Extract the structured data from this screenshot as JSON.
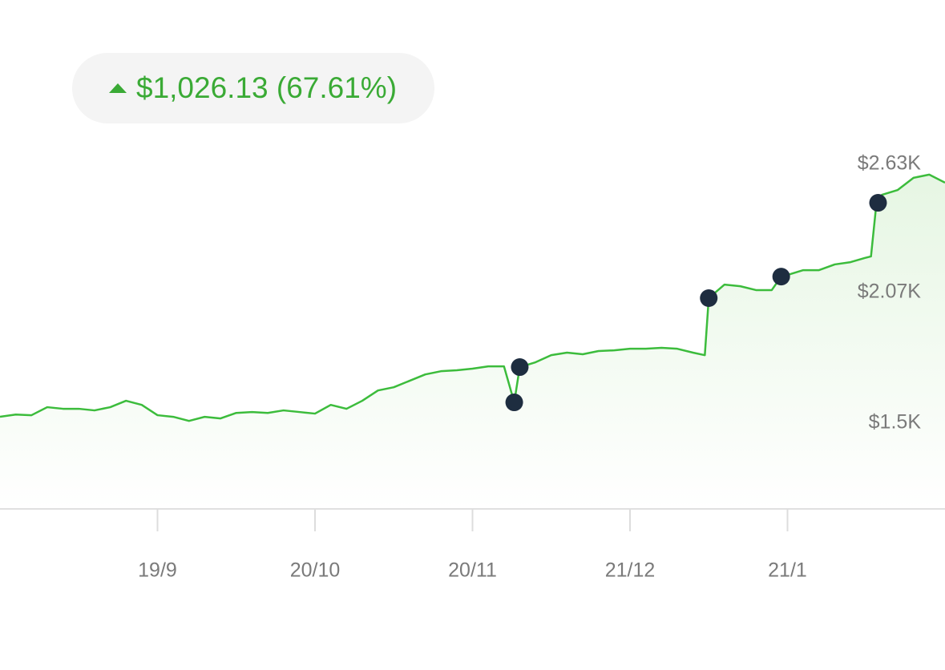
{
  "chart_data": {
    "type": "line",
    "annotation": "$1,026.13 (67.61%)",
    "x": [
      0,
      2,
      4,
      6,
      8,
      10,
      12,
      14,
      16,
      18,
      20,
      22,
      24,
      26,
      28,
      30,
      32,
      34,
      36,
      38,
      40,
      42,
      44,
      46,
      48,
      50,
      52,
      54,
      56,
      58,
      60,
      62,
      64,
      65.3,
      66,
      68,
      70,
      72,
      74,
      76,
      78,
      80,
      82,
      84,
      86,
      88,
      89.5,
      90,
      92,
      94,
      96,
      98,
      99.2,
      100,
      102,
      104,
      106,
      108,
      109.8,
      110.6,
      111.3,
      112,
      114,
      116,
      118,
      120
    ],
    "series": [
      {
        "color": "#3cbc3c",
        "values": [
          1528,
          1538,
          1535,
          1570,
          1563,
          1563,
          1556,
          1570,
          1598,
          1580,
          1535,
          1528,
          1510,
          1528,
          1521,
          1545,
          1549,
          1545,
          1556,
          1549,
          1542,
          1580,
          1563,
          1598,
          1643,
          1657,
          1685,
          1713,
          1727,
          1731,
          1738,
          1748,
          1748,
          1591,
          1745,
          1766,
          1797,
          1808,
          1801,
          1815,
          1818,
          1825,
          1825,
          1829,
          1825,
          1808,
          1797,
          2046,
          2105,
          2098,
          2081,
          2081,
          2140,
          2147,
          2168,
          2168,
          2193,
          2203,
          2221,
          2228,
          2462,
          2497,
          2518,
          2571,
          2585,
          2550
        ]
      }
    ],
    "events": {
      "color": "#1e2d40",
      "x": [
        65.3,
        66,
        90,
        99.2,
        111.5
      ],
      "values": [
        1591,
        1745,
        2046,
        2140,
        2462
      ]
    },
    "xlim": [
      0,
      120
    ],
    "xticks": [
      {
        "value": 20,
        "label": "19/9"
      },
      {
        "value": 40,
        "label": "20/10"
      },
      {
        "value": 60,
        "label": "20/11"
      },
      {
        "value": 80,
        "label": "21/12"
      },
      {
        "value": 100,
        "label": "21/1"
      }
    ],
    "ylim": [
      1126,
      2700
    ],
    "yticks": [
      {
        "value": 1500,
        "label": "$1.5K"
      },
      {
        "value": 2070,
        "label": "$2.07K"
      },
      {
        "value": 2630,
        "label": "$2.63K"
      }
    ]
  }
}
